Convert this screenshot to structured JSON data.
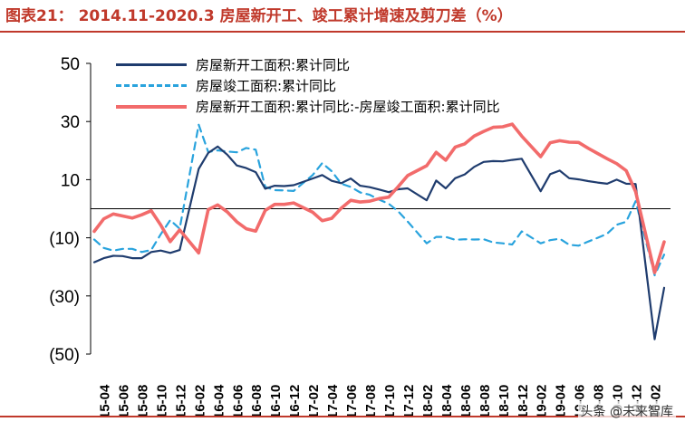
{
  "title": "图表21：  2014.11-2020.3 房屋新开工、竣工累计增速及剪刀差（%）",
  "watermark": "头条 @未来智库",
  "colors": {
    "accent": "#c0392b"
  },
  "chart_data": {
    "type": "line",
    "ylim": [
      -50,
      50
    ],
    "yticks": [
      {
        "value": 50,
        "label": "50"
      },
      {
        "value": 30,
        "label": "30"
      },
      {
        "value": 10,
        "label": "10"
      },
      {
        "value": -10,
        "label": "(10)"
      },
      {
        "value": -30,
        "label": "(30)"
      },
      {
        "value": -50,
        "label": "(50)"
      }
    ],
    "x": [
      "15-03",
      "15-04",
      "15-05",
      "15-06",
      "15-07",
      "15-08",
      "15-09",
      "15-10",
      "15-11",
      "15-12",
      "16-01",
      "16-02",
      "16-03",
      "16-04",
      "16-05",
      "16-06",
      "16-07",
      "16-08",
      "16-09",
      "16-10",
      "16-11",
      "16-12",
      "17-01",
      "17-02",
      "17-03",
      "17-04",
      "17-05",
      "17-06",
      "17-07",
      "17-08",
      "17-09",
      "17-10",
      "17-11",
      "17-12",
      "18-01",
      "18-02",
      "18-03",
      "18-04",
      "18-05",
      "18-06",
      "18-07",
      "18-08",
      "18-09",
      "18-10",
      "18-11",
      "18-12",
      "19-01",
      "19-02",
      "19-03",
      "19-04",
      "19-05",
      "19-06",
      "19-07",
      "19-08",
      "19-09",
      "19-10",
      "19-11",
      "19-12",
      "20-01",
      "20-02",
      "20-03"
    ],
    "xtick_labels": [
      "15-04",
      "15-06",
      "15-08",
      "15-10",
      "15-12",
      "16-02",
      "16-04",
      "16-06",
      "16-08",
      "16-10",
      "16-12",
      "17-02",
      "17-04",
      "17-06",
      "17-08",
      "17-10",
      "17-12",
      "18-02",
      "18-04",
      "18-06",
      "18-08",
      "18-10",
      "18-12",
      "19-02",
      "19-04",
      "19-06",
      "19-08",
      "19-10",
      "19-12",
      "20-02"
    ],
    "series": [
      {
        "name": "房屋新开工面积:累计同比",
        "color": "#1f3c6e",
        "style": "solid",
        "values": [
          -18.4,
          -17,
          -16.2,
          -16.3,
          -17,
          -17,
          -14.9,
          -14.4,
          -15.2,
          -14.2,
          null,
          13.7,
          19.2,
          21.4,
          18.6,
          14.9,
          14,
          12.6,
          6.9,
          7.9,
          7.8,
          8.1,
          null,
          10.4,
          11.6,
          9.6,
          8.8,
          10.4,
          7.9,
          7.4,
          6.6,
          5.7,
          6.7,
          7.0,
          null,
          2.9,
          9.7,
          7.0,
          10.5,
          11.8,
          14.4,
          16.1,
          16.4,
          16.3,
          16.8,
          17.2,
          null,
          6,
          11.9,
          13.1,
          10.5,
          10.1,
          9.5,
          9.0,
          8.6,
          10.0,
          8.6,
          8.5,
          null,
          -44.9,
          -27.2
        ]
      },
      {
        "name": "房屋竣工面积:累计同比",
        "color": "#29a3dd",
        "style": "dashed",
        "values": [
          -10.6,
          -13.5,
          -14.4,
          -13.8,
          -13.8,
          -14.9,
          -14.2,
          -8.8,
          -3.9,
          -6.9,
          null,
          28.9,
          19.5,
          20.1,
          19.7,
          19.4,
          20.9,
          20.3,
          7.5,
          6.4,
          6.3,
          6.1,
          null,
          11.6,
          15.7,
          12.9,
          8.6,
          7.5,
          5.6,
          4.8,
          3.1,
          1.7,
          -0.9,
          -4.4,
          null,
          -11.9,
          -9.7,
          -9.7,
          -10.7,
          -10.5,
          -10.6,
          -10.5,
          -11.6,
          -11.9,
          -12.3,
          -7.8,
          null,
          -11.9,
          -10.8,
          -10.3,
          -12.4,
          -12.7,
          -11.3,
          -10.0,
          -8.6,
          -5.5,
          -4.5,
          2.6,
          null,
          -22.9,
          -15.8
        ]
      },
      {
        "name": "房屋新开工面积:累计同比:-房屋竣工面积:累计同比",
        "color": "#f26b6b",
        "style": "solid",
        "values": [
          -7.8,
          -3.5,
          -1.8,
          -2.5,
          -3.2,
          -2.1,
          -0.7,
          -5.6,
          -11.3,
          -7.3,
          null,
          -15.2,
          -0.3,
          1.3,
          -1.1,
          -4.5,
          -6.9,
          -7.7,
          -0.6,
          1.5,
          1.5,
          2.0,
          null,
          -1.2,
          -4.1,
          -3.3,
          0.2,
          2.9,
          2.3,
          2.6,
          3.5,
          4.0,
          7.6,
          11.4,
          null,
          14.8,
          19.4,
          16.7,
          21.2,
          22.3,
          25.0,
          26.6,
          28.0,
          28.2,
          29.1,
          25.0,
          null,
          17.9,
          22.7,
          23.4,
          22.9,
          22.8,
          20.8,
          19.0,
          17.2,
          15.5,
          13.1,
          5.9,
          null,
          -22.0,
          -11.4
        ]
      }
    ]
  }
}
